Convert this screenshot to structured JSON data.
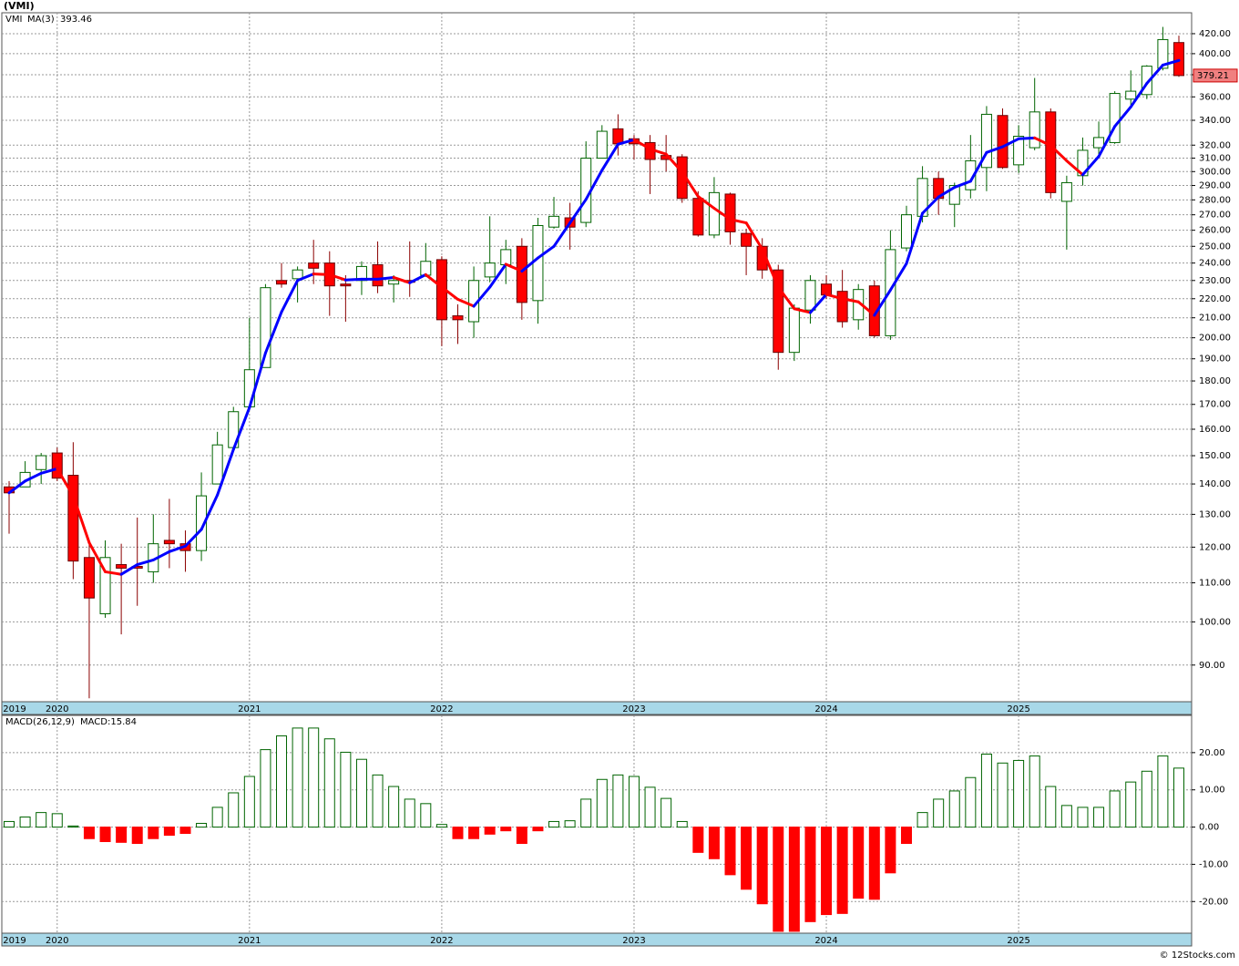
{
  "title": "(VMI)",
  "watermark": "© 12Stocks.com",
  "chart_data": [
    {
      "type": "candlestick",
      "symbol": "VMI",
      "categories": [
        "2019",
        null,
        null,
        "2020",
        null,
        null,
        null,
        null,
        null,
        null,
        null,
        null,
        null,
        null,
        null,
        "2021",
        null,
        null,
        null,
        null,
        null,
        null,
        null,
        null,
        null,
        null,
        null,
        "2022",
        null,
        null,
        null,
        null,
        null,
        null,
        null,
        null,
        null,
        null,
        null,
        "2023",
        null,
        null,
        null,
        null,
        null,
        null,
        null,
        null,
        null,
        null,
        null,
        "2024",
        null,
        null,
        null,
        null,
        null,
        null,
        null,
        null,
        null,
        null,
        null,
        "2025",
        null,
        null,
        null,
        null,
        null,
        null,
        null,
        null,
        null,
        null
      ],
      "open": [
        139,
        139,
        145,
        151,
        143,
        117,
        102,
        115,
        114.5,
        113,
        122,
        121,
        119,
        140,
        153,
        169,
        186,
        230,
        231,
        240,
        240,
        228,
        230,
        239,
        228,
        230,
        233,
        242,
        211,
        208,
        232,
        239,
        250,
        219,
        262,
        268,
        265,
        310,
        333,
        325,
        322,
        312,
        311,
        281,
        257,
        284,
        258,
        250,
        236,
        193,
        214,
        228,
        224,
        209,
        227,
        201,
        249,
        269,
        295,
        277,
        287,
        303,
        344,
        305,
        318,
        347,
        279,
        297,
        318,
        322,
        358,
        362,
        386,
        411
      ],
      "high": [
        141,
        148,
        151,
        153,
        155,
        121,
        122,
        121,
        129,
        130,
        135,
        125,
        144,
        159,
        169,
        210,
        228,
        240,
        238,
        254,
        247,
        233,
        241,
        253,
        233,
        253,
        252,
        244,
        217,
        238,
        269,
        254,
        255,
        268,
        282,
        278,
        323,
        336,
        345,
        328,
        328,
        328,
        313,
        286,
        296,
        285,
        261,
        255,
        239,
        217,
        233,
        233,
        236,
        228,
        230,
        260,
        276,
        304,
        300,
        292,
        328,
        352,
        350,
        336,
        377,
        350,
        297,
        326,
        339,
        365,
        384,
        389,
        427,
        418
      ],
      "low": [
        124,
        139,
        140,
        141,
        111,
        83,
        101,
        97,
        104,
        110,
        114,
        113,
        116,
        140,
        153,
        168,
        186,
        226,
        218,
        228,
        211,
        208,
        222,
        223,
        218,
        221,
        232,
        196,
        197,
        200,
        229,
        228,
        209,
        207,
        261,
        248,
        262,
        310,
        312,
        309,
        284,
        300,
        278,
        256,
        255,
        251,
        233,
        231,
        185,
        189,
        207,
        220,
        205,
        204,
        200,
        199,
        247,
        265,
        270,
        262,
        281,
        286,
        302,
        299,
        316,
        281,
        248,
        290,
        313,
        321,
        353,
        358,
        384,
        378
      ],
      "close": [
        137,
        144,
        150,
        142,
        116,
        106,
        117,
        114,
        114,
        121,
        121,
        119,
        136,
        154,
        167,
        185,
        226,
        228,
        236,
        237,
        227,
        227,
        238,
        227,
        230,
        229,
        241,
        209,
        209,
        230,
        240,
        248,
        218,
        263,
        269,
        262,
        310,
        331,
        321,
        321,
        309,
        309,
        281,
        257,
        285,
        259,
        250,
        236,
        193,
        215,
        230,
        222,
        208,
        225,
        201,
        248,
        270,
        295,
        281,
        290,
        308,
        345,
        303,
        327,
        347,
        285,
        292,
        316,
        326,
        363,
        365,
        388,
        414,
        379.21
      ],
      "up_color": "#006400",
      "down_color": "#ff0000",
      "ma": {
        "name": "MA(3)",
        "up_color": "#0000ff",
        "down_color": "#ff0000",
        "values": [
          137,
          141,
          143.7,
          145.3,
          136,
          121.3,
          113,
          112.3,
          115,
          116.3,
          118.7,
          120.3,
          125.3,
          136.3,
          152.3,
          168.7,
          192.7,
          213,
          230,
          233.7,
          233.3,
          230.3,
          230.7,
          230.7,
          231.7,
          228.7,
          233.3,
          226.3,
          219.7,
          216,
          226.3,
          239.3,
          235.3,
          243,
          250,
          264.7,
          280.3,
          301,
          320.7,
          324.3,
          317,
          313,
          299.7,
          282.3,
          274.3,
          267,
          264.7,
          248.3,
          226.3,
          214.7,
          212.7,
          222.3,
          220,
          218.3,
          211.3,
          224.7,
          239.7,
          271,
          282,
          288.7,
          293,
          314.3,
          318.7,
          325,
          325.7,
          319.7,
          308,
          297.7,
          311.3,
          335,
          351.3,
          372,
          389,
          393.46
        ]
      },
      "log_scale": true,
      "grid": true,
      "ylim": [
        82.3,
        442
      ],
      "yticks": [
        {
          "value": 90,
          "label": "90.00"
        },
        {
          "value": 100,
          "label": "100.00"
        },
        {
          "value": 110,
          "label": "110.00"
        },
        {
          "value": 120,
          "label": "120.00"
        },
        {
          "value": 130,
          "label": "130.00"
        },
        {
          "value": 140,
          "label": "140.00"
        },
        {
          "value": 150,
          "label": "150.00"
        },
        {
          "value": 160,
          "label": "160.00"
        },
        {
          "value": 170,
          "label": "170.00"
        },
        {
          "value": 180,
          "label": "180.00"
        },
        {
          "value": 190,
          "label": "190.00"
        },
        {
          "value": 200,
          "label": "200.00"
        },
        {
          "value": 210,
          "label": "210.00"
        },
        {
          "value": 220,
          "label": "220.00"
        },
        {
          "value": 230,
          "label": "230.00"
        },
        {
          "value": 240,
          "label": "240.00"
        },
        {
          "value": 250,
          "label": "250.00"
        },
        {
          "value": 260,
          "label": "260.00"
        },
        {
          "value": 270,
          "label": "270.00"
        },
        {
          "value": 280,
          "label": "280.00"
        },
        {
          "value": 290,
          "label": "290.00"
        },
        {
          "value": 300,
          "label": "300.00"
        },
        {
          "value": 310,
          "label": "310.00"
        },
        {
          "value": 320,
          "label": "320.00"
        },
        {
          "value": 340,
          "label": "340.00"
        },
        {
          "value": 360,
          "label": "360.00"
        },
        {
          "value": 380,
          "label": "380.00"
        },
        {
          "value": 400,
          "label": "400.00"
        },
        {
          "value": 420,
          "label": "420.00"
        }
      ]
    },
    {
      "type": "bar",
      "name": "MACD(26,12,9)",
      "readout_label": "MACD:",
      "values": [
        1.5,
        2.7,
        3.9,
        3.6,
        0.3,
        -3.1,
        -3.9,
        -4.1,
        -4.4,
        -3.1,
        -2.2,
        -1.7,
        1.0,
        5.3,
        9.2,
        13.6,
        20.8,
        24.5,
        26.6,
        26.6,
        23.7,
        20.1,
        18.2,
        14.0,
        10.9,
        7.5,
        6.3,
        0.7,
        -3.1,
        -3.1,
        -1.9,
        -1.0,
        -4.4,
        -1.0,
        1.5,
        1.7,
        7.5,
        12.8,
        14.0,
        13.6,
        10.7,
        7.7,
        1.5,
        -6.8,
        -8.5,
        -12.8,
        -16.7,
        -20.6,
        -28,
        -28,
        -25.4,
        -23.5,
        -23.2,
        -19.1,
        -19.4,
        -12.3,
        -4.4,
        3.9,
        7.5,
        9.7,
        13.3,
        19.6,
        17.2,
        17.9,
        19.1,
        10.9,
        5.8,
        5.3,
        5.3,
        9.7,
        12.1,
        15.0,
        19.1,
        15.84
      ],
      "up_color": "#006400",
      "down_color": "#ff0000",
      "grid": true,
      "ylim": [
        -28.5,
        30
      ],
      "yticks": [
        {
          "value": -20,
          "label": "-20.00"
        },
        {
          "value": -10,
          "label": "-10.00"
        },
        {
          "value": 0,
          "label": "0.00"
        },
        {
          "value": 10,
          "label": "10.00"
        },
        {
          "value": 20,
          "label": "20.00"
        }
      ]
    }
  ]
}
